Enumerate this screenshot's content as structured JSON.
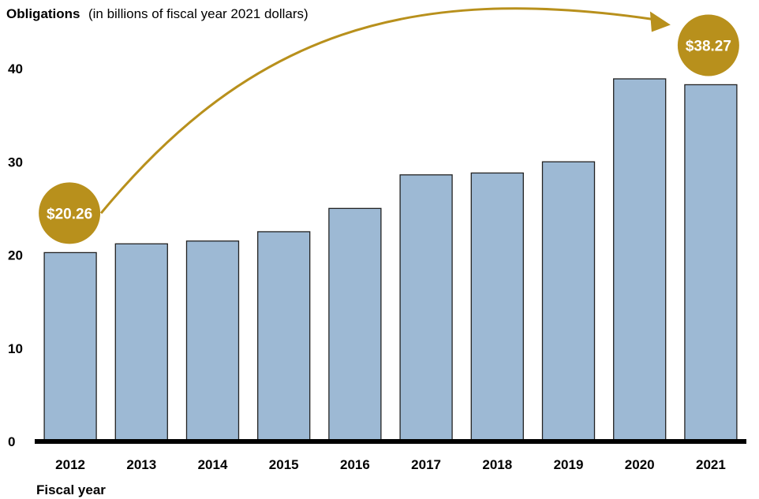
{
  "title": {
    "bold": "Obligations",
    "rest": "(in billions of fiscal year 2021 dollars)"
  },
  "xlabel": "Fiscal year",
  "colors": {
    "bar": "#9db9d4",
    "bar_stroke": "#222222",
    "accent": "#b8901c",
    "axis": "#000000"
  },
  "chart_data": {
    "type": "bar",
    "title": "Obligations (in billions of fiscal year 2021 dollars)",
    "xlabel": "Fiscal year",
    "ylabel": "",
    "categories": [
      "2012",
      "2013",
      "2014",
      "2015",
      "2016",
      "2017",
      "2018",
      "2019",
      "2020",
      "2021"
    ],
    "values": [
      20.26,
      21.2,
      21.5,
      22.5,
      25.0,
      28.6,
      28.8,
      30.0,
      38.9,
      38.27
    ],
    "ylim": [
      0,
      40
    ],
    "yticks": [
      0,
      10,
      20,
      30,
      40
    ],
    "grid": false,
    "annotations": [
      {
        "category": "2012",
        "label": "$20.26"
      },
      {
        "category": "2021",
        "label": "$38.27"
      }
    ]
  }
}
